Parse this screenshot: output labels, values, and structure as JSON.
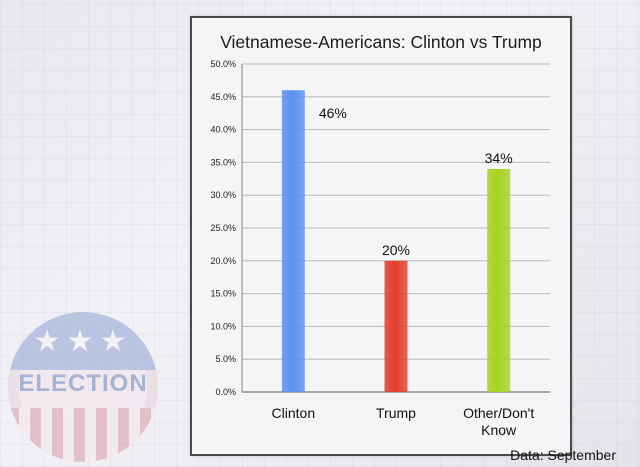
{
  "chart_data": {
    "type": "bar",
    "title": "Vietnamese-Americans: Clinton vs Trump",
    "categories": [
      "Clinton",
      "Trump",
      "Other/Don't Know"
    ],
    "category_lines": [
      [
        "Clinton"
      ],
      [
        "Trump"
      ],
      [
        "Other/Don't",
        "Know"
      ]
    ],
    "values": [
      46,
      20,
      34
    ],
    "data_labels": [
      "46%",
      "20%",
      "34%"
    ],
    "colors": [
      "#5b8ff0",
      "#e03c2c",
      "#a6d320"
    ],
    "ylim": [
      0,
      50
    ],
    "yticks": [
      "0.0%",
      "5.0%",
      "10.0%",
      "15.0%",
      "20.0%",
      "25.0%",
      "30.0%",
      "35.0%",
      "40.0%",
      "45.0%",
      "50.0%"
    ],
    "ytick_values": [
      0,
      5,
      10,
      15,
      20,
      25,
      30,
      35,
      40,
      45,
      50
    ],
    "grid": true,
    "xlabel": "",
    "ylabel": ""
  },
  "caption": "Data: September",
  "badge": {
    "word": "ELECTION",
    "stars": "★★★"
  }
}
